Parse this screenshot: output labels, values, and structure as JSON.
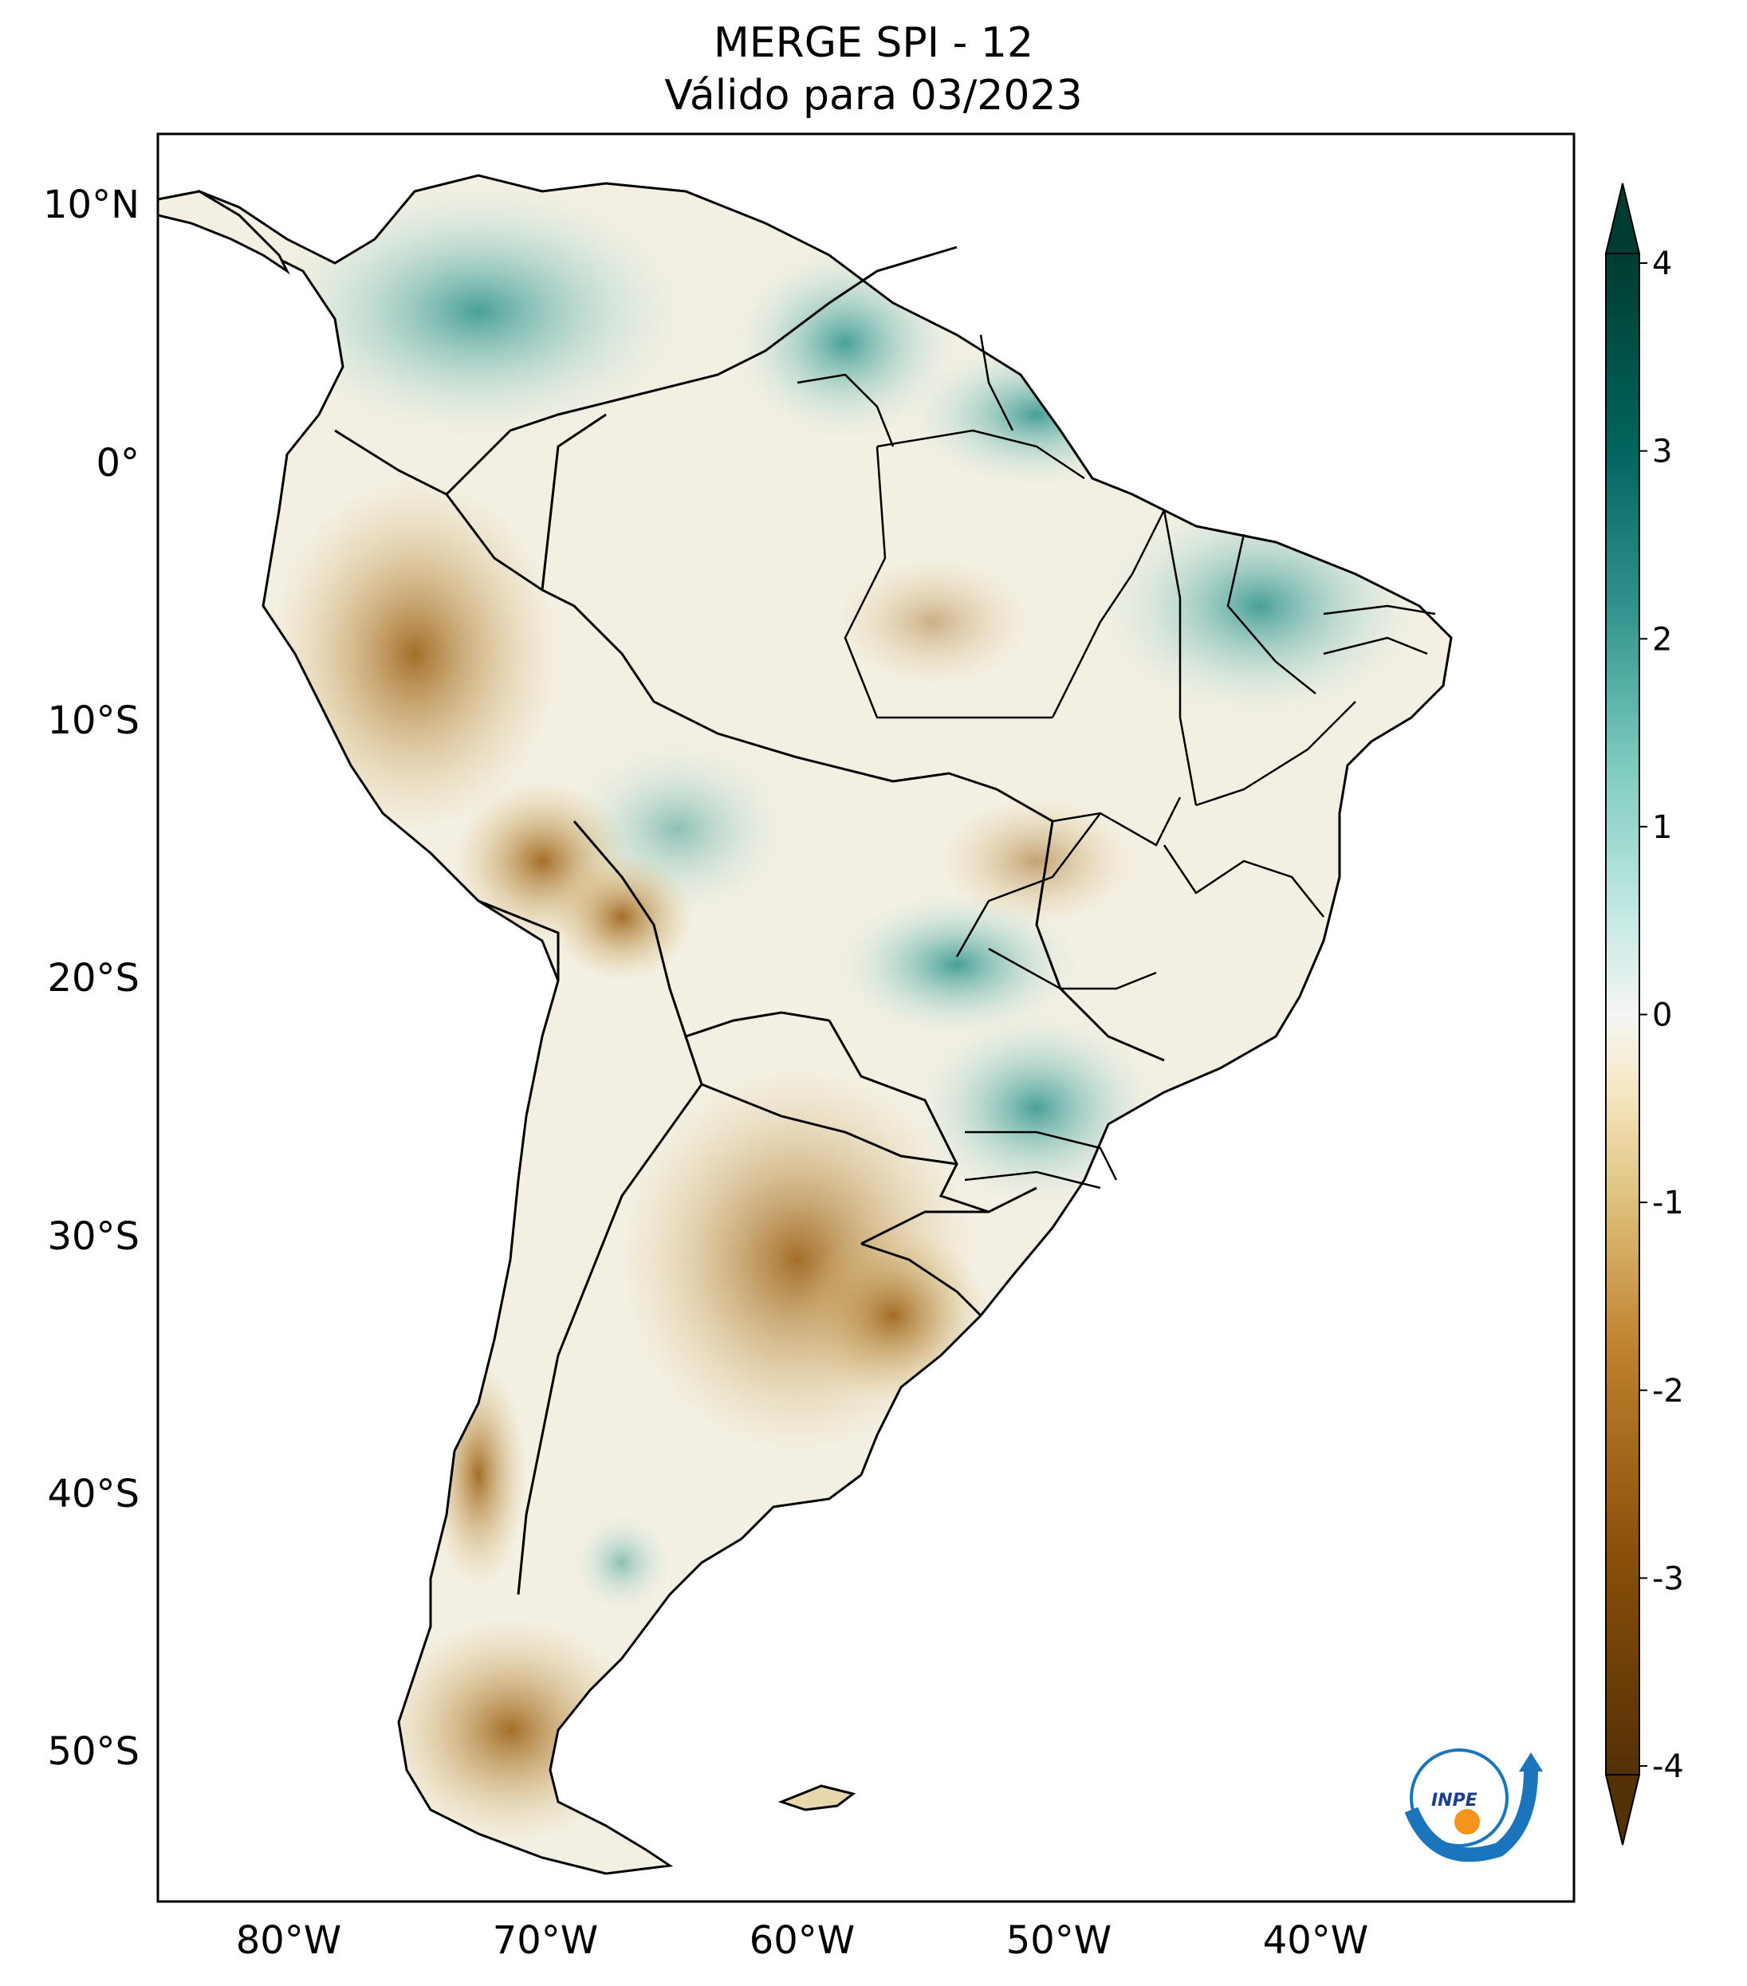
{
  "title": {
    "line1": "MERGE   SPI - 12",
    "line2": "Válido para 03/2023"
  },
  "map": {
    "lat_labels": [
      "10°N",
      "0°",
      "10°S",
      "20°S",
      "30°S",
      "40°S",
      "50°S"
    ],
    "lon_labels": [
      "80°W",
      "70°W",
      "60°W",
      "50°W",
      "40°W"
    ]
  },
  "colorbar": {
    "ticks": [
      "4",
      "3",
      "2",
      "1",
      "0",
      "-1",
      "-2",
      "-3",
      "-4"
    ],
    "min": -4,
    "max": 4,
    "colors": {
      "dry_extreme": "#543005",
      "dry": "#bf812d",
      "neutral": "#f5f5f5",
      "wet": "#35978f",
      "wet_extreme": "#003c30"
    }
  },
  "logo": {
    "text": "INPE"
  }
}
